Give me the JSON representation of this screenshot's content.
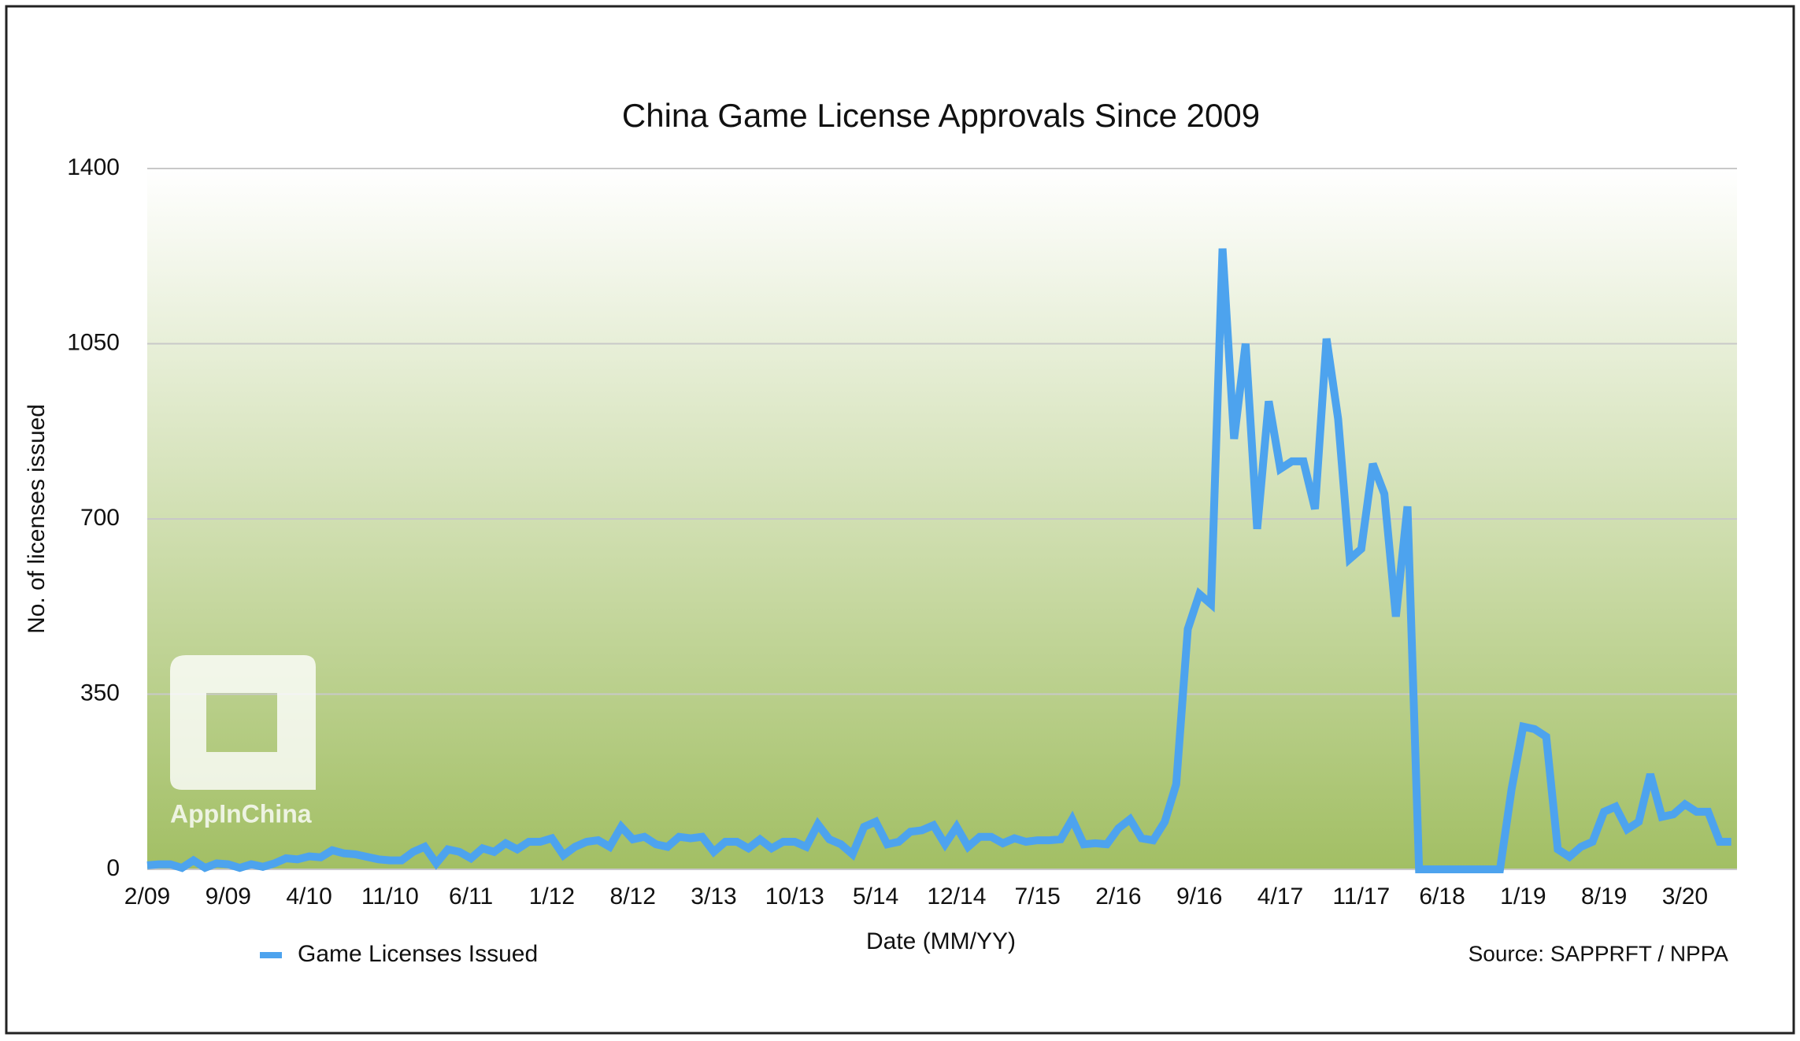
{
  "chart_data": {
    "type": "line",
    "title": "China Game License Approvals Since 2009",
    "x_label": "Date (MM/YY)",
    "y_label": "No. of licenses issued",
    "source": "Source: SAPPRFT / NPPA",
    "watermark": "AppInChina",
    "categories": [
      "2/09",
      null,
      null,
      null,
      null,
      null,
      null,
      "9/09",
      null,
      null,
      null,
      null,
      null,
      null,
      "4/10",
      null,
      null,
      null,
      null,
      null,
      null,
      "11/10",
      null,
      null,
      null,
      null,
      null,
      null,
      "6/11",
      null,
      null,
      null,
      null,
      null,
      null,
      "1/12",
      null,
      null,
      null,
      null,
      null,
      null,
      "8/12",
      null,
      null,
      null,
      null,
      null,
      null,
      "3/13",
      null,
      null,
      null,
      null,
      null,
      null,
      "10/13",
      null,
      null,
      null,
      null,
      null,
      null,
      "5/14",
      null,
      null,
      null,
      null,
      null,
      null,
      "12/14",
      null,
      null,
      null,
      null,
      null,
      null,
      "7/15",
      null,
      null,
      null,
      null,
      null,
      null,
      "2/16",
      null,
      null,
      null,
      null,
      null,
      null,
      "9/16",
      null,
      null,
      null,
      null,
      null,
      null,
      "4/17",
      null,
      null,
      null,
      null,
      null,
      null,
      "11/17",
      null,
      null,
      null,
      null,
      null,
      null,
      "6/18",
      null,
      null,
      null,
      null,
      null,
      null,
      "1/19",
      null,
      null,
      null,
      null,
      null,
      null,
      "8/19",
      null,
      null,
      null,
      null,
      null,
      null,
      "3/20",
      null,
      null,
      null,
      null
    ],
    "series": [
      {
        "name": "Game Licenses Issued",
        "color": "#4da3ee",
        "values": [
          8,
          10,
          10,
          3,
          18,
          3,
          12,
          10,
          3,
          10,
          5,
          12,
          22,
          20,
          26,
          24,
          38,
          32,
          30,
          25,
          20,
          18,
          18,
          35,
          45,
          12,
          40,
          35,
          22,
          42,
          35,
          52,
          40,
          55,
          55,
          62,
          28,
          45,
          55,
          58,
          45,
          85,
          60,
          65,
          50,
          45,
          65,
          62,
          65,
          35,
          55,
          55,
          42,
          60,
          42,
          55,
          55,
          45,
          90,
          60,
          50,
          30,
          85,
          95,
          50,
          55,
          75,
          78,
          88,
          50,
          85,
          45,
          65,
          65,
          52,
          62,
          55,
          58,
          58,
          60,
          100,
          50,
          52,
          50,
          82,
          100,
          62,
          58,
          95,
          170,
          480,
          550,
          530,
          1240,
          860,
          1050,
          680,
          935,
          800,
          815,
          815,
          720,
          1060,
          900,
          620,
          640,
          810,
          750,
          505,
          725,
          0,
          0,
          0,
          0,
          0,
          0,
          0,
          0,
          160,
          285,
          280,
          265,
          40,
          25,
          45,
          55,
          115,
          125,
          80,
          95,
          190,
          105,
          110,
          130,
          115,
          115,
          55,
          55
        ]
      }
    ],
    "ylim": [
      0,
      1400
    ],
    "yticks": [
      0,
      350,
      700,
      1050,
      1400
    ],
    "grid": true,
    "legend": "bottom-left"
  }
}
